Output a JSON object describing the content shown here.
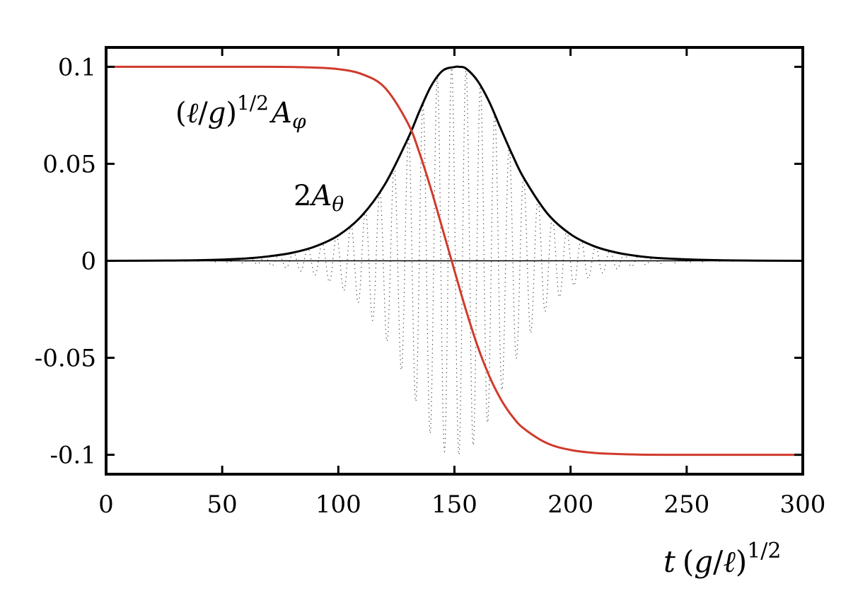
{
  "chart_data": {
    "type": "line",
    "title": "",
    "xlim": [
      0,
      300
    ],
    "ylim": [
      -0.11,
      0.11
    ],
    "x_ticks": [
      0,
      50,
      100,
      150,
      200,
      250,
      300
    ],
    "x_tick_labels": [
      "0",
      "50",
      "100",
      "150",
      "200",
      "250",
      "300"
    ],
    "y_ticks": [
      0.1,
      0.05,
      0,
      -0.05,
      -0.1
    ],
    "y_tick_labels": [
      "0.1",
      "0.05",
      "0",
      "-0.05",
      "-0.1"
    ],
    "grid": false,
    "legend": "none",
    "xlabel": {
      "t": "t",
      "open": "(",
      "g": "g",
      "slash": "/",
      "ell": "ℓ",
      "close": ")",
      "exp": "1/2"
    },
    "series": [
      {
        "label_parts": {
          "open": "(",
          "ell": "ℓ",
          "slash": "/",
          "g": "g",
          "close": ")",
          "exp": "1/2",
          "A": "A",
          "sub": "φ"
        },
        "color": "#d03a2c",
        "style": "solid",
        "x": [
          0,
          20,
          40,
          60,
          70,
          80,
          90,
          100,
          110,
          120,
          130,
          135,
          140,
          145,
          150,
          155,
          160,
          165,
          170,
          175,
          180,
          190,
          200,
          210,
          220,
          230,
          240,
          260,
          280,
          300
        ],
        "y": [
          0.1,
          0.1,
          0.1,
          0.1,
          0.1,
          0.0999,
          0.0996,
          0.0988,
          0.0963,
          0.0893,
          0.0708,
          0.0554,
          0.0366,
          0.0159,
          -0.005,
          -0.0255,
          -0.0441,
          -0.0594,
          -0.0714,
          -0.0803,
          -0.0866,
          -0.0941,
          -0.0975,
          -0.099,
          -0.0996,
          -0.0999,
          -0.1,
          -0.1,
          -0.1,
          -0.1
        ]
      },
      {
        "label_parts": {
          "two": "2",
          "A": "A",
          "sub": "θ"
        },
        "color": "#000000",
        "style": "solid",
        "x": [
          0,
          20,
          40,
          60,
          70,
          80,
          90,
          100,
          110,
          120,
          130,
          135,
          140,
          145,
          150,
          152,
          155,
          160,
          165,
          170,
          175,
          180,
          190,
          200,
          210,
          220,
          230,
          240,
          260,
          280,
          300
        ],
        "y": [
          0.0,
          0.0001,
          0.0003,
          0.0012,
          0.0023,
          0.0041,
          0.0074,
          0.0131,
          0.0231,
          0.0393,
          0.0631,
          0.0773,
          0.0902,
          0.0981,
          0.0999,
          0.1,
          0.0991,
          0.0927,
          0.0819,
          0.068,
          0.0545,
          0.0424,
          0.0244,
          0.0137,
          0.0076,
          0.0042,
          0.0023,
          0.0013,
          0.0004,
          0.0001,
          0.0
        ]
      },
      {
        "color": "#000000",
        "style": "dotted",
        "oscillation_period": 6.2,
        "envelope": "2A_theta"
      }
    ]
  }
}
